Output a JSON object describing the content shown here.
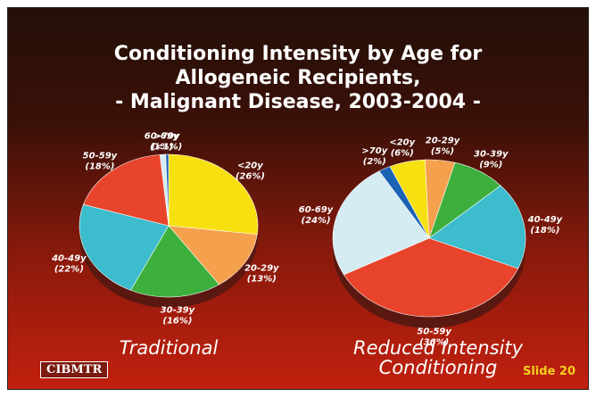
{
  "title": [
    "Conditioning Intensity by Age for",
    "Allogeneic Recipients,",
    "- Malignant Disease, 2003-2004 -"
  ],
  "logo": "CIBMTR",
  "slide": "Slide 20",
  "chart_data": [
    {
      "type": "pie",
      "title": "Traditional",
      "categories": [
        "<20y",
        "20-29y",
        "30-39y",
        "40-49y",
        "50-59y",
        "60-69y",
        ">70y"
      ],
      "values": [
        26,
        13,
        16,
        22,
        18,
        1,
        0.5
      ],
      "value_labels": [
        "(26%)",
        "(13%)",
        "(16%)",
        "(22%)",
        "(18%)",
        "(1%)",
        "(<1%)"
      ],
      "colors": [
        "#f7e010",
        "#f4a04c",
        "#3caf3c",
        "#3cbccc",
        "#e8442c",
        "#d4ecf2",
        "#1a62b4"
      ]
    },
    {
      "type": "pie",
      "title": "Reduced Intensity Conditioning",
      "categories": [
        "<20y",
        "20-29y",
        "30-39y",
        "40-49y",
        "50-59y",
        "60-69y",
        ">70y"
      ],
      "values": [
        6,
        5,
        9,
        18,
        36,
        24,
        2
      ],
      "value_labels": [
        "(6%)",
        "(5%)",
        "(9%)",
        "(18%)",
        "(36%)",
        "(24%)",
        "(2%)"
      ],
      "colors": [
        "#f7e010",
        "#f4a04c",
        "#3caf3c",
        "#3cbccc",
        "#e8442c",
        "#d4ecf2",
        "#1a62b4"
      ]
    }
  ]
}
